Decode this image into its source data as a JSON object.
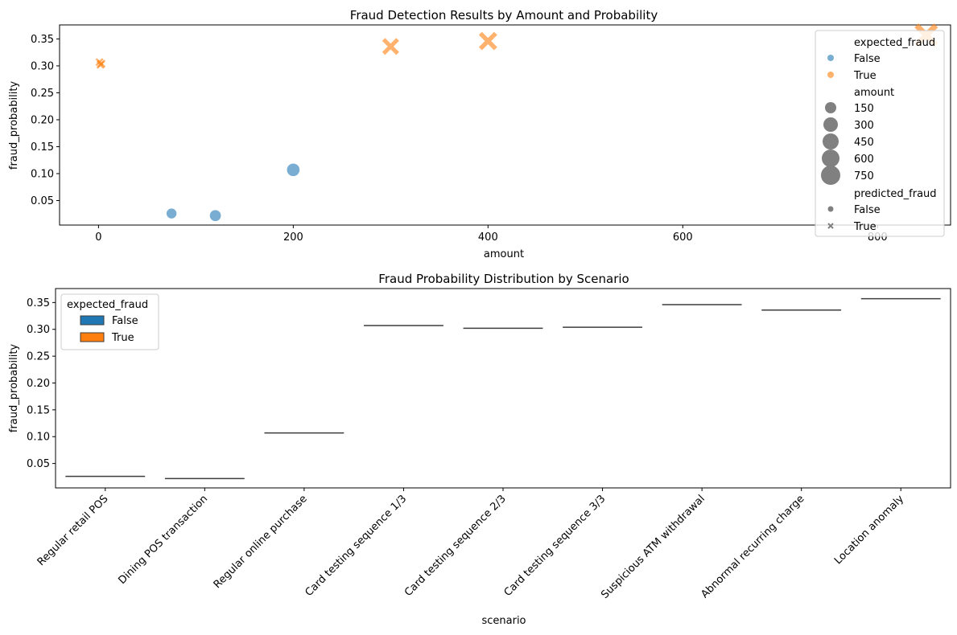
{
  "chart_data": [
    {
      "type": "scatter",
      "title": "Fraud Detection Results by Amount and Probability",
      "xlabel": "amount",
      "ylabel": "fraud_probability",
      "xlim": [
        -40,
        875
      ],
      "ylim": [
        0.0045,
        0.376
      ],
      "xticks": [
        0,
        200,
        400,
        600,
        800
      ],
      "yticks": [
        0.05,
        0.1,
        0.15,
        0.2,
        0.25,
        0.3,
        0.35
      ],
      "colors": {
        "False": "#1f77b4",
        "True": "#ff7f0e"
      },
      "points": [
        {
          "x": 75,
          "y": 0.026,
          "expected_fraud": "False",
          "predicted_fraud": "False"
        },
        {
          "x": 120,
          "y": 0.022,
          "expected_fraud": "False",
          "predicted_fraud": "False"
        },
        {
          "x": 200,
          "y": 0.107,
          "expected_fraud": "False",
          "predicted_fraud": "False"
        },
        {
          "x": 1,
          "y": 0.307,
          "expected_fraud": "True",
          "predicted_fraud": "True"
        },
        {
          "x": 2,
          "y": 0.302,
          "expected_fraud": "True",
          "predicted_fraud": "True"
        },
        {
          "x": 3,
          "y": 0.304,
          "expected_fraud": "True",
          "predicted_fraud": "True"
        },
        {
          "x": 300,
          "y": 0.336,
          "expected_fraud": "True",
          "predicted_fraud": "True"
        },
        {
          "x": 400,
          "y": 0.346,
          "expected_fraud": "True",
          "predicted_fraud": "True"
        },
        {
          "x": 850,
          "y": 0.357,
          "expected_fraud": "True",
          "predicted_fraud": "True"
        }
      ],
      "legend": {
        "placement": "top-right",
        "hue_title": "expected_fraud",
        "hue_entries": [
          "False",
          "True"
        ],
        "size_title": "amount",
        "size_entries": [
          "150",
          "300",
          "450",
          "600",
          "750"
        ],
        "style_title": "predicted_fraud",
        "style_entries": [
          "False",
          "True"
        ]
      }
    },
    {
      "type": "box",
      "title": "Fraud Probability Distribution by Scenario",
      "xlabel": "scenario",
      "ylabel": "fraud_probability",
      "ylim": [
        0.0045,
        0.376
      ],
      "yticks": [
        0.05,
        0.1,
        0.15,
        0.2,
        0.25,
        0.3,
        0.35
      ],
      "categories": [
        "Regular retail POS",
        "Dining POS transaction",
        "Regular online purchase",
        "Card testing sequence 1/3",
        "Card testing sequence 2/3",
        "Card testing sequence 3/3",
        "Suspicious ATM withdrawal",
        "Abnormal recurring charge",
        "Location anomaly"
      ],
      "values": [
        0.026,
        0.022,
        0.107,
        0.307,
        0.302,
        0.304,
        0.346,
        0.336,
        0.357
      ],
      "colors": {
        "False": "#1f77b4",
        "True": "#ff7f0e"
      },
      "legend": {
        "placement": "top-left",
        "title": "expected_fraud",
        "entries": [
          "False",
          "True"
        ]
      }
    }
  ]
}
